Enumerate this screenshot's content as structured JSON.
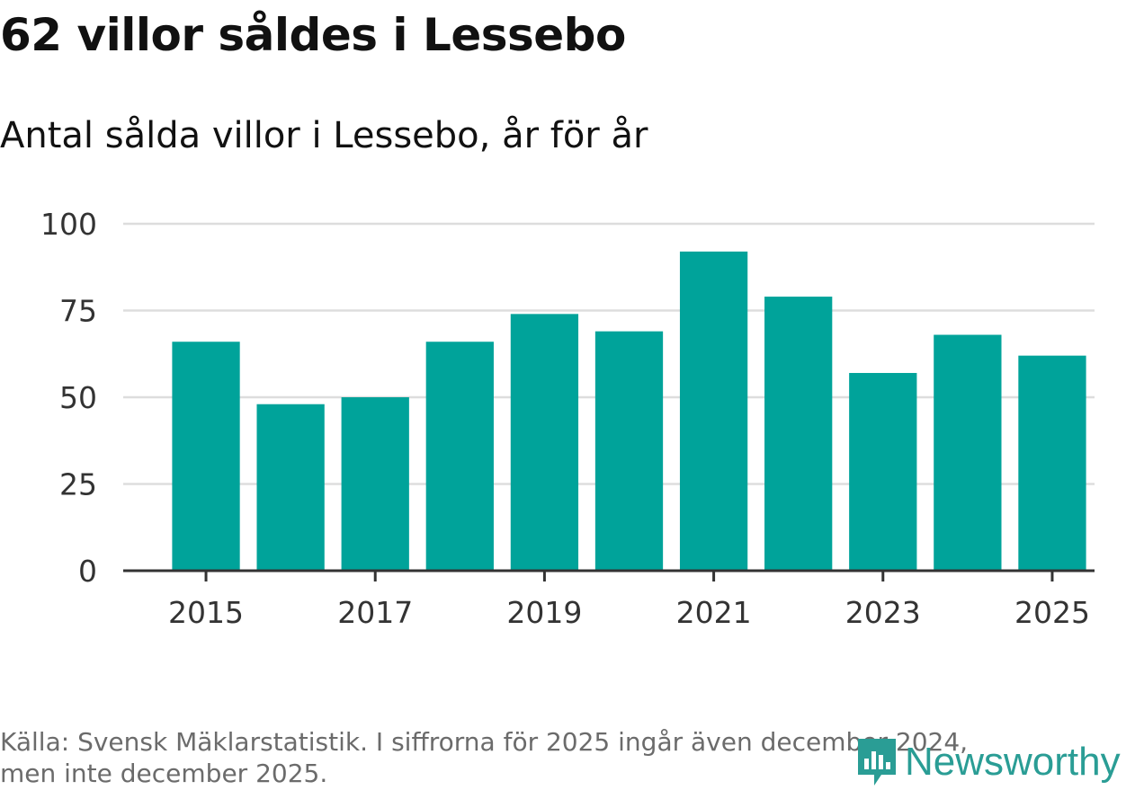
{
  "header": {
    "title": "62 villor såldes i Lessebo",
    "subtitle": "Antal sålda villor i Lessebo, år för år"
  },
  "chart_data": {
    "type": "bar",
    "categories": [
      "2015",
      "2016",
      "2017",
      "2018",
      "2019",
      "2020",
      "2021",
      "2022",
      "2023",
      "2024",
      "2025"
    ],
    "values": [
      66,
      48,
      50,
      66,
      74,
      69,
      92,
      79,
      57,
      68,
      62
    ],
    "x_tick_labels": [
      "2015",
      "2017",
      "2019",
      "2021",
      "2023",
      "2025"
    ],
    "y_ticks": [
      0,
      25,
      50,
      75,
      100
    ],
    "ylim": [
      0,
      100
    ],
    "xlabel": "",
    "ylabel": "",
    "grid": true,
    "bar_color": "#00a39a"
  },
  "footer": {
    "source_line1": "Källa: Svensk Mäklarstatistik. I siffrorna för 2025 ingår även december 2024,",
    "source_line2": "men inte december 2025."
  },
  "logo": {
    "text": "Newsworthy",
    "icon": "newsworthy-chart-icon",
    "color": "#2a9d95"
  }
}
